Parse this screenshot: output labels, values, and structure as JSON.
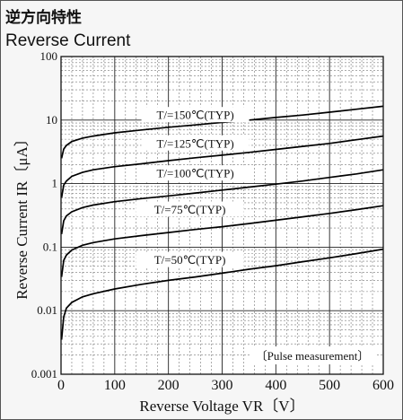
{
  "header": {
    "title_jp": "逆方向特性",
    "title_en": "Reverse Current"
  },
  "chart_data": {
    "type": "line",
    "title": "Reverse Current",
    "xlabel": "Reverse Voltage  VR〔V〕",
    "ylabel": "Reverse Current IR〔μA〕",
    "xlim": [
      0,
      600
    ],
    "ylim": [
      0.001,
      100
    ],
    "yscale": "log",
    "grid": true,
    "x_ticks": [
      0,
      100,
      200,
      300,
      400,
      500,
      600
    ],
    "y_ticks": [
      0.001,
      0.01,
      0.1,
      1,
      10,
      100
    ],
    "y_tick_labels": [
      "0.001",
      "0.01",
      "0.1",
      "1",
      "10",
      "100"
    ],
    "note": "〔Pulse measurement〕",
    "series": [
      {
        "label": "T/=150℃(TYP)",
        "label_x": 250,
        "label_y": 12,
        "x": [
          1,
          5,
          10,
          20,
          40,
          60,
          100,
          150,
          200,
          250,
          300,
          350,
          400,
          450,
          500,
          550,
          600
        ],
        "y": [
          2.5,
          3.5,
          4.0,
          4.6,
          5.2,
          5.6,
          6.3,
          7.0,
          7.7,
          8.4,
          9.2,
          10.0,
          11.0,
          12.0,
          13.3,
          14.8,
          16.5
        ]
      },
      {
        "label": "T/=125℃(TYP)",
        "label_x": 250,
        "label_y": 4.3,
        "x": [
          1,
          5,
          10,
          20,
          40,
          60,
          100,
          150,
          200,
          250,
          300,
          350,
          400,
          450,
          500,
          550,
          600
        ],
        "y": [
          0.6,
          0.95,
          1.1,
          1.3,
          1.5,
          1.65,
          1.85,
          2.05,
          2.3,
          2.55,
          2.8,
          3.1,
          3.45,
          3.85,
          4.3,
          4.9,
          5.6
        ]
      },
      {
        "label": "T/=100℃(TYP)",
        "label_x": 250,
        "label_y": 1.45,
        "x": [
          1,
          5,
          10,
          20,
          40,
          60,
          100,
          150,
          200,
          250,
          300,
          350,
          400,
          450,
          500,
          550,
          600
        ],
        "y": [
          0.16,
          0.26,
          0.31,
          0.36,
          0.42,
          0.46,
          0.52,
          0.58,
          0.64,
          0.71,
          0.79,
          0.88,
          0.98,
          1.1,
          1.25,
          1.42,
          1.65
        ]
      },
      {
        "label": "T/=75℃(TYP)",
        "label_x": 240,
        "label_y": 0.39,
        "x": [
          1,
          5,
          10,
          20,
          40,
          60,
          100,
          150,
          200,
          250,
          300,
          350,
          400,
          450,
          500,
          550,
          600
        ],
        "y": [
          0.034,
          0.062,
          0.075,
          0.09,
          0.107,
          0.118,
          0.135,
          0.152,
          0.17,
          0.19,
          0.21,
          0.235,
          0.265,
          0.3,
          0.34,
          0.39,
          0.45
        ]
      },
      {
        "label": "T/=50℃(TYP)",
        "label_x": 240,
        "label_y": 0.063,
        "x": [
          1,
          5,
          10,
          20,
          40,
          60,
          100,
          150,
          200,
          250,
          300,
          350,
          400,
          450,
          500,
          550,
          600
        ],
        "y": [
          0.0035,
          0.008,
          0.011,
          0.0135,
          0.0165,
          0.0185,
          0.022,
          0.026,
          0.03,
          0.034,
          0.039,
          0.045,
          0.051,
          0.059,
          0.068,
          0.079,
          0.093
        ]
      }
    ]
  }
}
